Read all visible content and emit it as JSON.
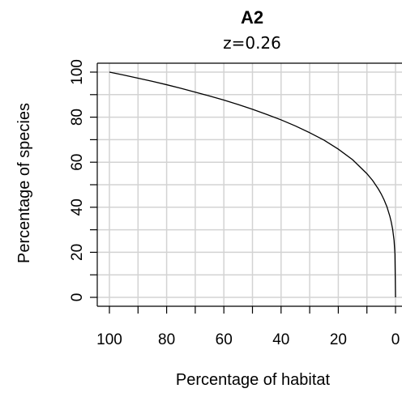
{
  "chart_data": {
    "type": "line",
    "title": "A2",
    "subtitle": "z=0.26",
    "xlabel": "Percentage of habitat",
    "ylabel": "Percentage of species",
    "xlim": [
      100,
      0
    ],
    "ylim": [
      0,
      100
    ],
    "x_ticks": [
      100,
      80,
      60,
      40,
      20,
      0
    ],
    "y_ticks": [
      0,
      20,
      40,
      60,
      80,
      100
    ],
    "x_grid": [
      100,
      90,
      80,
      70,
      60,
      50,
      40,
      30,
      20,
      10,
      0
    ],
    "y_grid": [
      0,
      10,
      20,
      30,
      40,
      50,
      60,
      70,
      80,
      90,
      100
    ],
    "grid": true,
    "z": 0.26,
    "series": [
      {
        "x": [
          100,
          95,
          90,
          85,
          80,
          75,
          70,
          65,
          60,
          55,
          50,
          45,
          40,
          35,
          30,
          25,
          20,
          15,
          10,
          8,
          6,
          5,
          4,
          3,
          2,
          1.5,
          1,
          0.5,
          0.2,
          0
        ],
        "y": [
          100,
          98.7,
          97.3,
          95.9,
          94.4,
          92.8,
          91.1,
          89.4,
          87.6,
          85.6,
          83.5,
          81.2,
          78.8,
          76.1,
          73.1,
          69.8,
          65.8,
          61.1,
          54.9,
          51.9,
          48.1,
          45.9,
          43.3,
          40.2,
          36.1,
          33.5,
          30.2,
          25.2,
          19.2,
          0
        ],
        "color": "#000000"
      }
    ]
  }
}
